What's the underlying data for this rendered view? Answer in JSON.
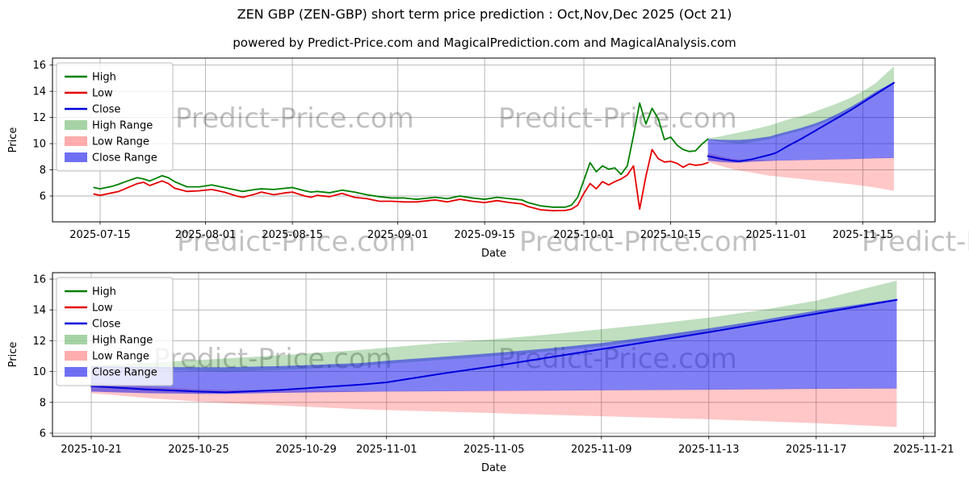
{
  "figure": {
    "title": "ZEN GBP (ZEN-GBP) short term price prediction : Oct,Nov,Dec 2025 (Oct 21)",
    "subtitle": "powered by Predict-Price.com and MagicalPrediction.com and MagicalAnalysis.com"
  },
  "watermark": {
    "text": "Predict-Price.com"
  },
  "style": {
    "high_line": "#008000",
    "low_line": "#e60000",
    "close_line": "#0000dc",
    "high_range": "rgba(0,128,0,0.25)",
    "low_range": "rgba(255,0,0,0.22)",
    "close_range": "rgba(15,15,235,0.53)",
    "grid": "#b0b0b0",
    "spine": "#000000",
    "watermark_color": "#808080"
  },
  "legend_items": [
    {
      "label": "High",
      "swatch": "line",
      "color": "#008000"
    },
    {
      "label": "Low",
      "swatch": "line",
      "color": "#e60000"
    },
    {
      "label": "Close",
      "swatch": "line",
      "color": "#0000dc"
    },
    {
      "label": "High Range",
      "swatch": "patch",
      "color": "rgba(0,128,0,0.35)"
    },
    {
      "label": "Low Range",
      "swatch": "patch",
      "color": "rgba(255,0,0,0.32)"
    },
    {
      "label": "Close Range",
      "swatch": "patch",
      "color": "rgba(15,15,235,0.6)"
    }
  ],
  "chart_data": [
    {
      "type": "line",
      "title": "ZEN GBP history and short term prediction",
      "xlabel": "Date",
      "ylabel": "Price",
      "grid": true,
      "legend_position": "upper left",
      "x_ticks": [
        "2025-07-15",
        "2025-08-01",
        "2025-08-15",
        "2025-09-01",
        "2025-09-15",
        "2025-10-01",
        "2025-10-15",
        "2025-11-01",
        "2025-11-15"
      ],
      "y_ticks": [
        6,
        8,
        10,
        12,
        14,
        16
      ],
      "x_range": [
        "2025-07-07",
        "2025-11-27"
      ],
      "y_range": [
        4.0,
        16.55
      ],
      "history": {
        "dates": [
          "2025-07-14",
          "2025-07-15",
          "2025-07-17",
          "2025-07-18",
          "2025-07-20",
          "2025-07-21",
          "2025-07-22",
          "2025-07-23",
          "2025-07-25",
          "2025-07-26",
          "2025-07-27",
          "2025-07-29",
          "2025-07-31",
          "2025-08-02",
          "2025-08-04",
          "2025-08-06",
          "2025-08-07",
          "2025-08-09",
          "2025-08-10",
          "2025-08-12",
          "2025-08-14",
          "2025-08-15",
          "2025-08-17",
          "2025-08-18",
          "2025-08-19",
          "2025-08-21",
          "2025-08-23",
          "2025-08-25",
          "2025-08-27",
          "2025-08-29",
          "2025-08-31",
          "2025-09-02",
          "2025-09-04",
          "2025-09-06",
          "2025-09-07",
          "2025-09-09",
          "2025-09-11",
          "2025-09-13",
          "2025-09-15",
          "2025-09-17",
          "2025-09-19",
          "2025-09-21",
          "2025-09-22",
          "2025-09-24",
          "2025-09-26",
          "2025-09-28",
          "2025-09-29",
          "2025-09-30",
          "2025-10-01",
          "2025-10-02",
          "2025-10-03",
          "2025-10-04",
          "2025-10-05",
          "2025-10-06",
          "2025-10-07",
          "2025-10-08",
          "2025-10-09",
          "2025-10-10",
          "2025-10-11",
          "2025-10-12",
          "2025-10-13",
          "2025-10-14",
          "2025-10-15",
          "2025-10-16",
          "2025-10-17",
          "2025-10-18",
          "2025-10-19",
          "2025-10-20",
          "2025-10-21"
        ],
        "high": [
          6.65,
          6.55,
          6.75,
          6.9,
          7.25,
          7.4,
          7.3,
          7.15,
          7.55,
          7.4,
          7.1,
          6.7,
          6.7,
          6.85,
          6.65,
          6.45,
          6.35,
          6.5,
          6.55,
          6.5,
          6.6,
          6.65,
          6.4,
          6.3,
          6.35,
          6.25,
          6.45,
          6.3,
          6.1,
          5.95,
          5.85,
          5.85,
          5.75,
          5.85,
          5.9,
          5.8,
          6.0,
          5.85,
          5.75,
          5.9,
          5.8,
          5.7,
          5.5,
          5.25,
          5.15,
          5.15,
          5.3,
          5.9,
          7.2,
          8.55,
          7.85,
          8.3,
          8.05,
          8.15,
          7.65,
          8.3,
          10.6,
          13.1,
          11.5,
          12.7,
          11.9,
          10.3,
          10.5,
          9.9,
          9.55,
          9.4,
          9.45,
          9.95,
          10.35
        ],
        "low": [
          6.15,
          6.05,
          6.25,
          6.35,
          6.75,
          6.95,
          7.05,
          6.8,
          7.15,
          6.95,
          6.6,
          6.35,
          6.4,
          6.5,
          6.3,
          6.0,
          5.9,
          6.15,
          6.3,
          6.1,
          6.25,
          6.3,
          6.0,
          5.9,
          6.05,
          5.95,
          6.2,
          5.9,
          5.8,
          5.6,
          5.6,
          5.55,
          5.55,
          5.65,
          5.7,
          5.55,
          5.75,
          5.6,
          5.5,
          5.65,
          5.5,
          5.4,
          5.2,
          4.95,
          4.88,
          4.9,
          5.0,
          5.3,
          6.2,
          6.95,
          6.55,
          7.1,
          6.85,
          7.1,
          7.3,
          7.6,
          8.3,
          5.0,
          7.5,
          9.55,
          8.85,
          8.6,
          8.65,
          8.5,
          8.2,
          8.45,
          8.35,
          8.4,
          8.55
        ]
      },
      "prediction": {
        "dates": [
          "2025-10-21",
          "2025-10-23",
          "2025-10-25",
          "2025-10-26",
          "2025-10-28",
          "2025-10-31",
          "2025-11-01",
          "2025-11-03",
          "2025-11-05",
          "2025-11-07",
          "2025-11-09",
          "2025-11-11",
          "2025-11-13",
          "2025-11-15",
          "2025-11-17",
          "2025-11-20"
        ],
        "close": [
          9.05,
          8.85,
          8.7,
          8.65,
          8.8,
          9.15,
          9.3,
          9.85,
          10.35,
          10.9,
          11.45,
          12.0,
          12.55,
          13.15,
          13.75,
          14.65
        ],
        "high_max": [
          10.4,
          10.55,
          10.75,
          10.85,
          11.05,
          11.4,
          11.55,
          11.85,
          12.1,
          12.4,
          12.75,
          13.1,
          13.5,
          14.0,
          14.6,
          15.9
        ],
        "high_min": [
          10.3,
          10.15,
          10.05,
          10.0,
          10.1,
          10.35,
          10.5,
          10.75,
          11.0,
          11.3,
          11.65,
          12.1,
          12.6,
          13.15,
          13.75,
          14.6
        ],
        "close_max": [
          10.35,
          10.3,
          10.28,
          10.28,
          10.35,
          10.55,
          10.7,
          10.95,
          11.2,
          11.5,
          11.85,
          12.3,
          12.8,
          13.35,
          13.95,
          14.72
        ],
        "close_min": [
          8.7,
          8.6,
          8.55,
          8.55,
          8.62,
          8.68,
          8.7,
          8.72,
          8.74,
          8.76,
          8.78,
          8.8,
          8.82,
          8.85,
          8.88,
          8.9
        ],
        "low_max": [
          9.3,
          9.05,
          8.85,
          8.8,
          8.78,
          8.74,
          8.73,
          8.75,
          8.77,
          8.79,
          8.81,
          8.83,
          8.85,
          8.88,
          8.91,
          8.93
        ],
        "low_min": [
          8.6,
          8.3,
          8.05,
          7.95,
          7.8,
          7.55,
          7.5,
          7.4,
          7.3,
          7.2,
          7.1,
          7.0,
          6.9,
          6.78,
          6.65,
          6.4
        ]
      }
    },
    {
      "type": "line",
      "title": "ZEN GBP short term prediction detail",
      "xlabel": "Date",
      "ylabel": "Price",
      "grid": true,
      "legend_position": "upper left",
      "x_ticks": [
        "2025-10-21",
        "2025-10-25",
        "2025-10-29",
        "2025-11-01",
        "2025-11-05",
        "2025-11-09",
        "2025-11-13",
        "2025-11-17",
        "2025-11-21"
      ],
      "y_ticks": [
        6,
        8,
        10,
        12,
        14,
        16
      ],
      "x_range": [
        "2025-10-19",
        "2025-11-21"
      ],
      "y_range": [
        5.8,
        16.4
      ],
      "prediction": {
        "dates": [
          "2025-10-21",
          "2025-10-23",
          "2025-10-25",
          "2025-10-26",
          "2025-10-28",
          "2025-10-31",
          "2025-11-01",
          "2025-11-03",
          "2025-11-05",
          "2025-11-07",
          "2025-11-09",
          "2025-11-11",
          "2025-11-13",
          "2025-11-15",
          "2025-11-17",
          "2025-11-20"
        ],
        "close": [
          9.05,
          8.85,
          8.7,
          8.65,
          8.8,
          9.15,
          9.3,
          9.85,
          10.35,
          10.9,
          11.45,
          12.0,
          12.55,
          13.15,
          13.75,
          14.65
        ],
        "high_max": [
          10.4,
          10.55,
          10.75,
          10.85,
          11.05,
          11.4,
          11.55,
          11.85,
          12.1,
          12.4,
          12.75,
          13.1,
          13.5,
          14.0,
          14.6,
          15.9
        ],
        "high_min": [
          10.3,
          10.15,
          10.05,
          10.0,
          10.1,
          10.35,
          10.5,
          10.75,
          11.0,
          11.3,
          11.65,
          12.1,
          12.6,
          13.15,
          13.75,
          14.6
        ],
        "close_max": [
          10.35,
          10.3,
          10.28,
          10.28,
          10.35,
          10.55,
          10.7,
          10.95,
          11.2,
          11.5,
          11.85,
          12.3,
          12.8,
          13.35,
          13.95,
          14.72
        ],
        "close_min": [
          8.7,
          8.6,
          8.55,
          8.55,
          8.62,
          8.68,
          8.7,
          8.72,
          8.74,
          8.76,
          8.78,
          8.8,
          8.82,
          8.85,
          8.88,
          8.9
        ],
        "low_max": [
          9.3,
          9.05,
          8.85,
          8.8,
          8.78,
          8.74,
          8.73,
          8.75,
          8.77,
          8.79,
          8.81,
          8.83,
          8.85,
          8.88,
          8.91,
          8.93
        ],
        "low_min": [
          8.6,
          8.3,
          8.05,
          7.95,
          7.8,
          7.55,
          7.5,
          7.4,
          7.3,
          7.2,
          7.1,
          7.0,
          6.9,
          6.78,
          6.65,
          6.4
        ]
      }
    }
  ]
}
